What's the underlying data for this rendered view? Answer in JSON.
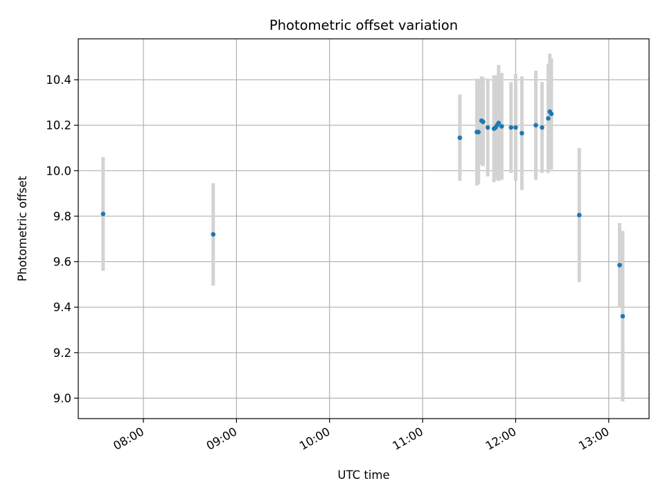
{
  "chart_data": {
    "type": "scatter",
    "title": "Photometric offset variation",
    "xlabel": "UTC time",
    "ylabel": "Photometric offset",
    "xlim": [
      "07:18",
      "13:26"
    ],
    "ylim": [
      8.91,
      10.58
    ],
    "x_ticks": [
      "08:00",
      "09:00",
      "10:00",
      "11:00",
      "12:00",
      "13:00"
    ],
    "y_ticks": [
      "9.0",
      "9.2",
      "9.4",
      "9.6",
      "9.8",
      "10.0",
      "10.2",
      "10.4"
    ],
    "grid": true,
    "legend": "none",
    "colors": {
      "points": "#1f77b4",
      "error_bars": "#d3d3d3",
      "grid": "#b0b0b0"
    },
    "series": [
      {
        "points": [
          {
            "x": "07:34",
            "y": 9.81,
            "yerr": 0.25
          },
          {
            "x": "08:45",
            "y": 9.72,
            "yerr": 0.225
          },
          {
            "x": "11:24",
            "y": 10.145,
            "yerr": 0.19
          },
          {
            "x": "11:35",
            "y": 10.17,
            "yerr": 0.235
          },
          {
            "x": "11:36",
            "y": 10.17,
            "yerr": 0.23
          },
          {
            "x": "11:38",
            "y": 10.22,
            "yerr": 0.195
          },
          {
            "x": "11:39",
            "y": 10.215,
            "yerr": 0.195
          },
          {
            "x": "11:42",
            "y": 10.19,
            "yerr": 0.215
          },
          {
            "x": "11:46",
            "y": 10.185,
            "yerr": 0.235
          },
          {
            "x": "11:47",
            "y": 10.19,
            "yerr": 0.23
          },
          {
            "x": "11:48",
            "y": 10.2,
            "yerr": 0.215
          },
          {
            "x": "11:49",
            "y": 10.21,
            "yerr": 0.255
          },
          {
            "x": "11:51",
            "y": 10.195,
            "yerr": 0.235
          },
          {
            "x": "11:57",
            "y": 10.19,
            "yerr": 0.2
          },
          {
            "x": "12:00",
            "y": 10.19,
            "yerr": 0.235
          },
          {
            "x": "12:04",
            "y": 10.165,
            "yerr": 0.25
          },
          {
            "x": "12:13",
            "y": 10.2,
            "yerr": 0.24
          },
          {
            "x": "12:17",
            "y": 10.19,
            "yerr": 0.2
          },
          {
            "x": "12:21",
            "y": 10.23,
            "yerr": 0.24
          },
          {
            "x": "12:22",
            "y": 10.26,
            "yerr": 0.255
          },
          {
            "x": "12:23",
            "y": 10.25,
            "yerr": 0.245
          },
          {
            "x": "12:41",
            "y": 9.805,
            "yerr": 0.295
          },
          {
            "x": "13:07",
            "y": 9.585,
            "yerr": 0.185
          },
          {
            "x": "13:09",
            "y": 9.36,
            "yerr": 0.375
          }
        ]
      }
    ]
  }
}
